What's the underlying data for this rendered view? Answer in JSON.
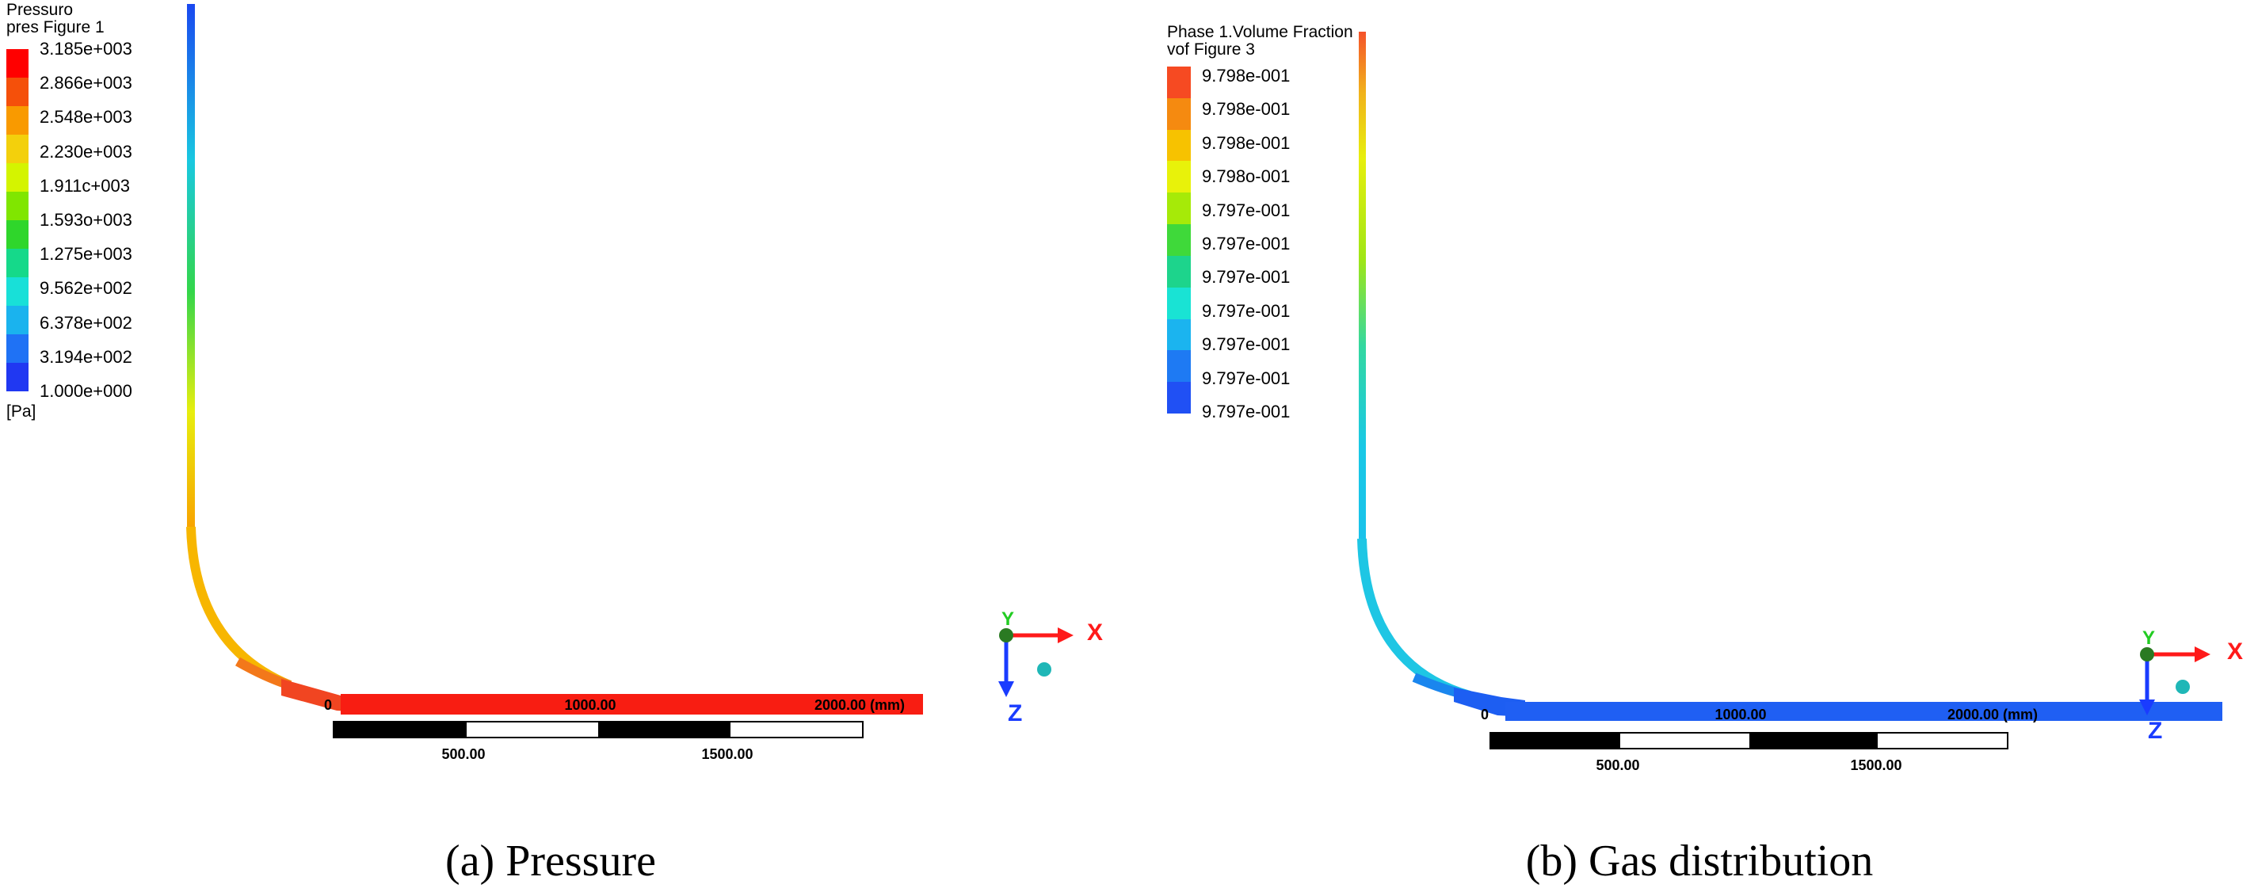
{
  "panel_a": {
    "legend_title_line1": "Pressuro",
    "legend_title_line2": "pres Figure 1",
    "legend_values": [
      "3.185e+003",
      "2.866e+003",
      "2.548e+003",
      "2.230e+003",
      "1.911c+003",
      "1.593o+003",
      "1.275e+003",
      "9.562e+002",
      "6.378e+002",
      "3.194e+002",
      "1.000e+000"
    ],
    "legend_colors": [
      "#ff0000",
      "#f5500a",
      "#f99a00",
      "#f3d00c",
      "#d4f400",
      "#80e600",
      "#2fd62b",
      "#15d98a",
      "#18e0d8",
      "#1ab3ee",
      "#1f72f5",
      "#2038f2"
    ],
    "units": "[Pa]",
    "ruler_labels": [
      "0",
      "1000.00",
      "2000.00 (mm)"
    ],
    "scale_labels": [
      "500.00",
      "1500.00"
    ],
    "caption": "(a) Pressure",
    "axes": {
      "x": "X",
      "y": "Y",
      "z": "Z"
    }
  },
  "panel_b": {
    "legend_title_line1": "Phase 1.Volume Fraction",
    "legend_title_line2": "vof Figure 3",
    "legend_values": [
      "9.798e-001",
      "9.798e-001",
      "9.798e-001",
      "9.798o-001",
      "9.797e-001",
      "9.797e-001",
      "9.797e-001",
      "9.797e-001",
      "9.797e-001",
      "9.797e-001",
      "9.797e-001"
    ],
    "legend_colors": [
      "#f64a22",
      "#f58a10",
      "#f7c200",
      "#e8f20a",
      "#a6ea08",
      "#3fd93a",
      "#1dd48c",
      "#19e3d4",
      "#1bb4ef",
      "#1e7af3",
      "#2050f4"
    ],
    "ruler_labels": [
      "0",
      "1000.00",
      "2000.00 (mm)"
    ],
    "scale_labels": [
      "500.00",
      "1500.00"
    ],
    "caption": "(b) Gas distribution",
    "axes": {
      "x": "X",
      "y": "Y",
      "z": "Z"
    }
  },
  "colors": {
    "axis_x": "#ff1a1a",
    "axis_y": "#22cc22",
    "axis_z": "#1a3cff"
  }
}
